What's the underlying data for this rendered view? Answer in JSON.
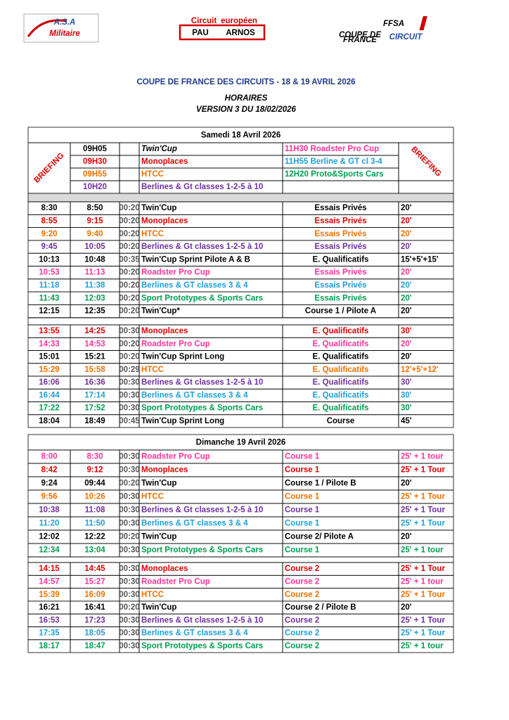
{
  "logos": {
    "asa": {
      "top": "A.S.A",
      "bottom": "Militaire"
    },
    "circuit": {
      "top": "Circuit",
      "small": "européen",
      "left": "PAU",
      "right": "ARNOS"
    },
    "ffsa": {
      "name": "FFSA",
      "sub1": "COUPE DE",
      "sub2": "FRANCE",
      "circuit": "CIRCUIT"
    }
  },
  "header": {
    "title": "COUPE DE FRANCE DES CIRCUITS - 18 & 19 AVRIL 2026",
    "subtitle": "HORAIRES",
    "version": "VERSION 3 DU 18/02/2026"
  },
  "days": [
    {
      "title": "Samedi 18 Avril 2026",
      "briefing": {
        "label": "BRIEFING",
        "left": [
          {
            "time": "09H05",
            "event": "Twin'Cup",
            "color": "#000000"
          },
          {
            "time": "09H30",
            "event": "Monoplaces",
            "color": "#e00000"
          },
          {
            "time": "09H55",
            "event": "HTCC",
            "color": "#f07000"
          },
          {
            "time": "10H20",
            "event": "Berlines & Gt classes 1-2-5 à 10",
            "color": "#7030a0"
          }
        ],
        "right": [
          {
            "event": "11H30 Roadster Pro Cup",
            "color": "#ff3399"
          },
          {
            "event": "11H55 Berline  & GT cl 3-4",
            "color": "#1f9fd8"
          },
          {
            "event": "12H20  Proto&Sports Cars",
            "color": "#00a050"
          }
        ]
      },
      "blocks": [
        [
          {
            "start": "8:30",
            "end": "8:50",
            "duration": "00:20",
            "event": "Twin'Cup",
            "session": "Essais Privés",
            "length": "20'",
            "color": "#000000"
          },
          {
            "start": "8:55",
            "end": "9:15",
            "duration": "00:20",
            "event": "Monoplaces",
            "session": "Essais Privés",
            "length": "20'",
            "color": "#e00000"
          },
          {
            "start": "9:20",
            "end": "9:40",
            "duration": "00:20",
            "event": "HTCC",
            "session": "Essais Privés",
            "length": "20'",
            "color": "#f07000"
          },
          {
            "start": "9:45",
            "end": "10:05",
            "duration": "00:20",
            "event": "Berlines & Gt classes 1-2-5 à 10",
            "session": "Essais Privés",
            "length": "20'",
            "color": "#7030a0"
          },
          {
            "start": "10:13",
            "end": "10:48",
            "duration": "00:35",
            "event": "Twin'Cup Sprint Pilote A & B",
            "session": "E. Qualificatifs",
            "length": "15'+5'+15'",
            "color": "#000000"
          },
          {
            "start": "10:53",
            "end": "11:13",
            "duration": "00:20",
            "event": "Roadster Pro Cup",
            "session": "Essais Privés",
            "length": "20'",
            "color": "#ff3399"
          },
          {
            "start": "11:18",
            "end": "11:38",
            "duration": "00:20",
            "event": "Berlines & GT classes 3 & 4",
            "session": "Essais Privés",
            "length": "20'",
            "color": "#1f9fd8"
          },
          {
            "start": "11:43",
            "end": "12:03",
            "duration": "00:20",
            "event": "Sport Prototypes & Sports Cars",
            "session": "Essais Privés",
            "length": "20'",
            "color": "#00a050"
          },
          {
            "start": "12:15",
            "end": "12:35",
            "duration": "00:20",
            "event": "Twin'Cup*",
            "session": "Course 1 / Pilote A",
            "length": "20'",
            "color": "#000000"
          }
        ],
        [
          {
            "start": "13:55",
            "end": "14:25",
            "duration": "00:30",
            "event": "Monoplaces",
            "session": "E. Qualificatifs",
            "length": "30'",
            "color": "#e00000"
          },
          {
            "start": "14:33",
            "end": "14:53",
            "duration": "00:20",
            "event": "Roadster Pro Cup",
            "session": "E. Qualificatifs",
            "length": "20'",
            "color": "#ff3399"
          },
          {
            "start": "15:01",
            "end": "15:21",
            "duration": "00:20",
            "event": "Twin'Cup Sprint Long",
            "session": "E. Qualificatifs",
            "length": "20'",
            "color": "#000000"
          },
          {
            "start": "15:29",
            "end": "15:58",
            "duration": "00:29",
            "event": "HTCC",
            "session": "E. Qualificatifs",
            "length": "12'+5'+12'",
            "color": "#f07000"
          },
          {
            "start": "16:06",
            "end": "16:36",
            "duration": "00:30",
            "event": "Berlines & Gt classes 1-2-5 à 10",
            "session": "E. Qualificatifs",
            "length": "30'",
            "color": "#7030a0"
          },
          {
            "start": "16:44",
            "end": "17:14",
            "duration": "00:30",
            "event": "Berlines & GT classes 3 & 4",
            "session": "E. Qualificatifs",
            "length": "30'",
            "color": "#1f9fd8"
          },
          {
            "start": "17:22",
            "end": "17:52",
            "duration": "00:30",
            "event": "Sport Prototypes & Sports Cars",
            "session": "E. Qualificatifs",
            "length": "30'",
            "color": "#00a050"
          },
          {
            "start": "18:04",
            "end": "18:49",
            "duration": "00:45",
            "event": "Twin'Cup Sprint Long",
            "session": "Course",
            "length": "45'",
            "color": "#000000"
          }
        ]
      ]
    },
    {
      "title": "Dimanche 19 Avril 2026",
      "blocks": [
        [
          {
            "start": "8:00",
            "end": "8:30",
            "duration": "00:30",
            "event": "Roadster Pro Cup",
            "session": "Course 1",
            "length": "25' + 1 tour",
            "color": "#ff3399"
          },
          {
            "start": "8:42",
            "end": "9:12",
            "duration": "00:30",
            "event": "Monoplaces",
            "session": "Course 1",
            "length": "25' + 1 Tour",
            "color": "#e00000"
          },
          {
            "start": "9:24",
            "end": "09:44",
            "duration": "00:20",
            "event": "Twin'Cup",
            "session": "Course 1 / Pilote B",
            "length": "20'",
            "color": "#000000"
          },
          {
            "start": "9:56",
            "end": "10:26",
            "duration": "00:30",
            "event": "HTCC",
            "session": "Course 1",
            "length": "25' + 1 Tour",
            "color": "#f07000"
          },
          {
            "start": "10:38",
            "end": "11:08",
            "duration": "00:30",
            "event": "Berlines & Gt classes 1-2-5 à 10",
            "session": "Course 1",
            "length": "25' + 1 Tour",
            "color": "#7030a0"
          },
          {
            "start": "11:20",
            "end": "11:50",
            "duration": "00:30",
            "event": "Berlines & GT classes 3 & 4",
            "session": "Course 1",
            "length": "25' + 1 Tour",
            "color": "#1f9fd8"
          },
          {
            "start": "12:02",
            "end": "12:22",
            "duration": "00:20",
            "event": "Twin'Cup",
            "session": "Course 2/ Pilote A",
            "length": "20'",
            "color": "#000000"
          },
          {
            "start": "12:34",
            "end": "13:04",
            "duration": "00:30",
            "event": "Sport Prototypes & Sports Cars",
            "session": "Course 1",
            "length": "25' + 1 tour",
            "color": "#00a050"
          }
        ],
        [
          {
            "start": "14:15",
            "end": "14:45",
            "duration": "00:30",
            "event": "Monoplaces",
            "session": "Course 2",
            "length": "25' + 1 Tour",
            "color": "#e00000"
          },
          {
            "start": "14:57",
            "end": "15:27",
            "duration": "00:30",
            "event": "Roadster Pro Cup",
            "session": "Course 2",
            "length": "25' + 1 tour",
            "color": "#ff3399"
          },
          {
            "start": "15:39",
            "end": "16:09",
            "duration": "00:30",
            "event": "HTCC",
            "session": "Course 2",
            "length": "25' + 1 Tour",
            "color": "#f07000"
          },
          {
            "start": "16:21",
            "end": "16:41",
            "duration": "00:20",
            "event": "Twin'Cup",
            "session": "Course 2 / Pilote B",
            "length": "20'",
            "color": "#000000"
          },
          {
            "start": "16:53",
            "end": "17:23",
            "duration": "00:30",
            "event": "Berlines & Gt classes 1-2-5 à 10",
            "session": "Course 2",
            "length": "25' + 1 Tour",
            "color": "#7030a0"
          },
          {
            "start": "17:35",
            "end": "18:05",
            "duration": "00:30",
            "event": "Berlines & GT classes 3 & 4",
            "session": "Course 2",
            "length": "25' + 1 Tour",
            "color": "#1f9fd8"
          },
          {
            "start": "18:17",
            "end": "18:47",
            "duration": "00:30",
            "event": "Sport Prototypes & Sports Cars",
            "session": "Course 2",
            "length": "25' + 1 tour",
            "color": "#00a050"
          }
        ]
      ]
    }
  ]
}
